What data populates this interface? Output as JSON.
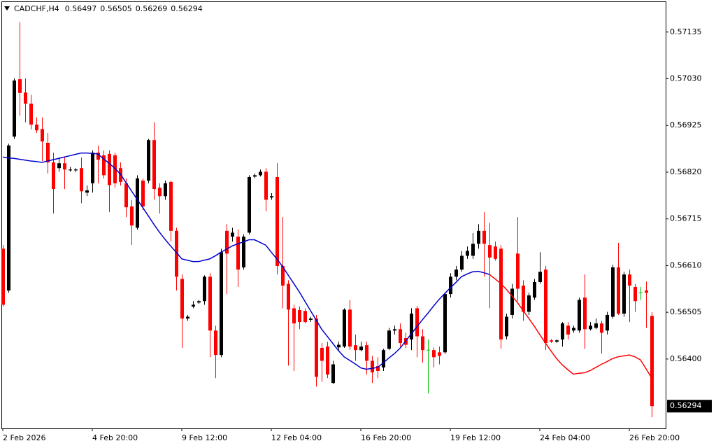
{
  "chart_data": {
    "type": "candlestick",
    "symbol": "CADCHF,H4",
    "categories": [
      "2 Feb 2026",
      null,
      null,
      null,
      null,
      null,
      null,
      null,
      null,
      null,
      null,
      null,
      null,
      null,
      null,
      null,
      "4 Feb 20:00",
      null,
      null,
      null,
      null,
      null,
      null,
      null,
      null,
      null,
      null,
      null,
      null,
      null,
      null,
      null,
      "9 Feb 12:00",
      null,
      null,
      null,
      null,
      null,
      null,
      null,
      null,
      null,
      null,
      null,
      null,
      null,
      null,
      null,
      "12 Feb 04:00",
      null,
      null,
      null,
      null,
      null,
      null,
      null,
      null,
      null,
      null,
      null,
      null,
      null,
      null,
      null,
      "16 Feb 20:00",
      null,
      null,
      null,
      null,
      null,
      null,
      null,
      null,
      null,
      null,
      null,
      null,
      null,
      null,
      null,
      "19 Feb 12:00",
      null,
      null,
      null,
      null,
      null,
      null,
      null,
      null,
      null,
      null,
      null,
      null,
      null,
      null,
      null,
      "24 Feb 04:00",
      null,
      null,
      null,
      null,
      null,
      null,
      null,
      null,
      null,
      null,
      null,
      null,
      null,
      null,
      null,
      "26 Feb 20:00",
      null,
      null,
      null,
      null
    ],
    "ohlc": [
      [
        0.56648,
        0.56656,
        0.56518,
        0.56522
      ],
      [
        0.56554,
        0.56884,
        0.56549,
        0.5688
      ],
      [
        0.569,
        0.57031,
        0.56895,
        0.57026
      ],
      [
        0.57029,
        0.57157,
        0.56947,
        0.56998
      ],
      [
        0.56999,
        0.57031,
        0.56932,
        0.56974
      ],
      [
        0.56974,
        0.56994,
        0.56916,
        0.56927
      ],
      [
        0.56927,
        0.56943,
        0.56908,
        0.56914
      ],
      [
        0.56917,
        0.56943,
        0.56845,
        0.56889
      ],
      [
        0.56886,
        0.56908,
        0.56817,
        0.56842
      ],
      [
        0.56842,
        0.56864,
        0.56727,
        0.56782
      ],
      [
        0.56829,
        0.56853,
        0.56821,
        0.5684
      ],
      [
        0.5684,
        0.56853,
        0.56782,
        0.56826
      ],
      [
        0.56824,
        0.56832,
        0.56821,
        0.56826
      ],
      [
        0.56824,
        0.56829,
        0.5682,
        0.56826
      ],
      [
        0.56829,
        0.56853,
        0.5675,
        0.56777
      ],
      [
        0.56774,
        0.5679,
        0.56766,
        0.56779
      ],
      [
        0.56795,
        0.56869,
        0.56774,
        0.56864
      ],
      [
        0.56864,
        0.5688,
        0.56795,
        0.56848
      ],
      [
        0.56858,
        0.56869,
        0.56806,
        0.56813
      ],
      [
        0.56861,
        0.56869,
        0.5673,
        0.56791
      ],
      [
        0.56858,
        0.56864,
        0.56785,
        0.56795
      ],
      [
        0.56829,
        0.56842,
        0.5679,
        0.56798
      ],
      [
        0.56795,
        0.56806,
        0.56719,
        0.56741
      ],
      [
        0.56743,
        0.56758,
        0.56656,
        0.567
      ],
      [
        0.56695,
        0.56813,
        0.56691,
        0.56806
      ],
      [
        0.56801,
        0.56806,
        0.56735,
        0.56743
      ],
      [
        0.56801,
        0.56895,
        0.56795,
        0.56892
      ],
      [
        0.56892,
        0.56932,
        0.56758,
        0.56782
      ],
      [
        0.56785,
        0.56795,
        0.56727,
        0.56766
      ],
      [
        0.56766,
        0.56801,
        0.56758,
        0.56795
      ],
      [
        0.56798,
        0.56801,
        0.56664,
        0.56688
      ],
      [
        0.56688,
        0.56695,
        0.56554,
        0.56585
      ],
      [
        0.5658,
        0.5659,
        0.56425,
        0.56491
      ],
      [
        0.56491,
        0.56499,
        0.56486,
        0.56495
      ],
      [
        0.56518,
        0.5653,
        0.56514,
        0.56522
      ],
      [
        0.56527,
        0.56533,
        0.56524,
        0.5653
      ],
      [
        0.5653,
        0.56588,
        0.56522,
        0.56585
      ],
      [
        0.56585,
        0.56593,
        0.56404,
        0.56464
      ],
      [
        0.56464,
        0.56475,
        0.56357,
        0.56409
      ],
      [
        0.56409,
        0.56648,
        0.56404,
        0.5664
      ],
      [
        0.56688,
        0.56703,
        0.56546,
        0.56637
      ],
      [
        0.56675,
        0.56695,
        0.56664,
        0.56684
      ],
      [
        0.56675,
        0.56691,
        0.56562,
        0.56601
      ],
      [
        0.56606,
        0.5668,
        0.56601,
        0.56675
      ],
      [
        0.56684,
        0.56813,
        0.5668,
        0.56809
      ],
      [
        0.5681,
        0.56817,
        0.56807,
        0.56813
      ],
      [
        0.56813,
        0.56826,
        0.5681,
        0.56821
      ],
      [
        0.56821,
        0.56829,
        0.56732,
        0.56758
      ],
      [
        0.56763,
        0.56773,
        0.56758,
        0.56766
      ],
      [
        0.56809,
        0.5684,
        0.5659,
        0.56609
      ],
      [
        0.56609,
        0.56719,
        0.56514,
        0.56565
      ],
      [
        0.56569,
        0.56577,
        0.56385,
        0.56511
      ],
      [
        0.56514,
        0.56522,
        0.56373,
        0.5648
      ],
      [
        0.5651,
        0.56518,
        0.56467,
        0.56483
      ],
      [
        0.56508,
        0.56514,
        0.5648,
        0.56483
      ],
      [
        0.56488,
        0.56495,
        0.56483,
        0.56491
      ],
      [
        0.56491,
        0.56499,
        0.56338,
        0.5636
      ],
      [
        0.56425,
        0.56436,
        0.56349,
        0.56396
      ],
      [
        0.56428,
        0.56439,
        0.56357,
        0.56365
      ],
      [
        0.56346,
        0.56396,
        0.56344,
        0.56388
      ],
      [
        0.56426,
        0.56439,
        0.5642,
        0.56432
      ],
      [
        0.56428,
        0.56514,
        0.56425,
        0.56511
      ],
      [
        0.56511,
        0.56533,
        0.5642,
        0.56428
      ],
      [
        0.56431,
        0.56455,
        0.56396,
        0.5642
      ],
      [
        0.5642,
        0.56439,
        0.56417,
        0.56428
      ],
      [
        0.56431,
        0.56439,
        0.56365,
        0.56396
      ],
      [
        0.56396,
        0.56407,
        0.56346,
        0.5637
      ],
      [
        0.56384,
        0.56404,
        0.56357,
        0.56373
      ],
      [
        0.56381,
        0.56423,
        0.56373,
        0.5642
      ],
      [
        0.56423,
        0.5647,
        0.5642,
        0.56464
      ],
      [
        0.56464,
        0.56475,
        0.56455,
        0.56467
      ],
      [
        0.56467,
        0.5648,
        0.56428,
        0.56436
      ],
      [
        0.56447,
        0.56459,
        0.56425,
        0.56432
      ],
      [
        0.56444,
        0.56514,
        0.5642,
        0.56502
      ],
      [
        0.56514,
        0.56519,
        0.56404,
        0.56451
      ],
      [
        0.56451,
        0.56467,
        0.56392,
        0.5642
      ],
      [
        0.5642,
        0.56444,
        0.56322,
        0.5642
      ],
      [
        0.5642,
        0.56426,
        0.56381,
        0.56404
      ],
      [
        0.56415,
        0.56428,
        0.56388,
        0.56407
      ],
      [
        0.56415,
        0.56549,
        0.56412,
        0.56546
      ],
      [
        0.56546,
        0.56593,
        0.56538,
        0.56585
      ],
      [
        0.56585,
        0.56609,
        0.56577,
        0.56601
      ],
      [
        0.56601,
        0.56643,
        0.56596,
        0.56632
      ],
      [
        0.56632,
        0.56653,
        0.56625,
        0.56643
      ],
      [
        0.56632,
        0.56683,
        0.56625,
        0.56659
      ],
      [
        0.56659,
        0.56703,
        0.56648,
        0.56688
      ],
      [
        0.56688,
        0.5673,
        0.56585,
        0.56659
      ],
      [
        0.56656,
        0.56706,
        0.56514,
        0.56628
      ],
      [
        0.56653,
        0.56664,
        0.56621,
        0.56625
      ],
      [
        0.56648,
        0.56656,
        0.56423,
        0.56444
      ],
      [
        0.56451,
        0.56502,
        0.56444,
        0.56495
      ],
      [
        0.56499,
        0.56569,
        0.56491,
        0.56558
      ],
      [
        0.56637,
        0.56719,
        0.5653,
        0.56558
      ],
      [
        0.56565,
        0.56577,
        0.56486,
        0.56506
      ],
      [
        0.56506,
        0.56549,
        0.56499,
        0.56543
      ],
      [
        0.56538,
        0.5658,
        0.56533,
        0.56573
      ],
      [
        0.56573,
        0.5664,
        0.56569,
        0.56596
      ],
      [
        0.56601,
        0.56609,
        0.5642,
        0.56436
      ],
      [
        0.56442,
        0.56445,
        0.56436,
        0.56439
      ],
      [
        0.56439,
        0.56444,
        0.56436,
        0.56442
      ],
      [
        0.56444,
        0.56483,
        0.56428,
        0.5648
      ],
      [
        0.56475,
        0.56483,
        0.56444,
        0.56455
      ],
      [
        0.56464,
        0.56475,
        0.56459,
        0.5647
      ],
      [
        0.56464,
        0.56538,
        0.56459,
        0.56533
      ],
      [
        0.56538,
        0.5659,
        0.56423,
        0.56467
      ],
      [
        0.56467,
        0.56483,
        0.56464,
        0.56475
      ],
      [
        0.5647,
        0.56491,
        0.56467,
        0.5648
      ],
      [
        0.5648,
        0.56486,
        0.56412,
        0.56459
      ],
      [
        0.56464,
        0.56506,
        0.56455,
        0.56499
      ],
      [
        0.56495,
        0.56612,
        0.56491,
        0.56606
      ],
      [
        0.56606,
        0.56661,
        0.56499,
        0.56502
      ],
      [
        0.56502,
        0.56596,
        0.56495,
        0.5659
      ],
      [
        0.5659,
        0.56601,
        0.56483,
        0.56565
      ],
      [
        0.56562,
        0.56569,
        0.56506,
        0.5653
      ],
      [
        0.56549,
        0.56562,
        0.56533,
        0.56549
      ],
      [
        0.56554,
        0.56574,
        0.5647,
        0.56549
      ],
      [
        0.56497,
        0.56505,
        0.56269,
        0.56294
      ]
    ],
    "up_color": "#000000",
    "down_color": "#ff0000",
    "doji_color": "#00c000",
    "series": [
      {
        "color": "#0000cc",
        "values": [
          0.56854,
          0.56852,
          0.56851,
          0.56849,
          0.56847,
          0.56845,
          0.56844,
          0.56842,
          0.56845,
          0.56848,
          0.56851,
          0.56854,
          0.56857,
          0.5686,
          0.56863,
          0.56863,
          0.56862,
          0.56861,
          0.5685,
          0.5684,
          0.56829,
          0.56816,
          0.56797,
          0.56778,
          0.56759,
          0.56741,
          0.56722,
          0.56703,
          0.56685,
          0.56669,
          0.56654,
          0.5664,
          0.56625,
          0.56622,
          0.56619,
          0.56619,
          0.56622,
          0.56625,
          0.56632,
          0.5664,
          0.56647,
          0.56654,
          0.56659,
          0.56663,
          0.56668,
          0.56668,
          0.56662,
          0.56656,
          0.5664,
          0.56625,
          0.56608,
          0.56589,
          0.5657,
          0.56551,
          0.5653,
          0.56509,
          0.56488,
          0.56467,
          0.56451,
          0.56435,
          0.56419,
          0.56405,
          0.56397,
          0.56389,
          0.5638,
          0.56377,
          0.56379,
          0.56381,
          0.56391,
          0.56402,
          0.56412,
          0.56424,
          0.5644,
          0.56456,
          0.56472,
          0.56488,
          0.56503,
          0.56519,
          0.56534,
          0.56547,
          0.5656,
          0.56572,
          0.56585,
          0.56591,
          0.56596,
          0.56597,
          0.56594,
          0.5659,
          null,
          null,
          null,
          null,
          null,
          null,
          null,
          null,
          null,
          null,
          null,
          null,
          null,
          null,
          null,
          null,
          null,
          null,
          null,
          null,
          null,
          null,
          null,
          null,
          null,
          null,
          null,
          null,
          null
        ]
      },
      {
        "color": "#ff0000",
        "values": [
          null,
          null,
          null,
          null,
          null,
          null,
          null,
          null,
          null,
          null,
          null,
          null,
          null,
          null,
          null,
          null,
          null,
          null,
          null,
          null,
          null,
          null,
          null,
          null,
          null,
          null,
          null,
          null,
          null,
          null,
          null,
          null,
          null,
          null,
          null,
          null,
          null,
          null,
          null,
          null,
          null,
          null,
          null,
          null,
          null,
          null,
          null,
          null,
          null,
          null,
          null,
          null,
          null,
          null,
          null,
          null,
          null,
          null,
          null,
          null,
          null,
          null,
          null,
          null,
          null,
          null,
          null,
          null,
          null,
          null,
          null,
          null,
          null,
          null,
          null,
          null,
          null,
          null,
          null,
          null,
          null,
          null,
          null,
          null,
          null,
          null,
          null,
          0.5659,
          0.5658,
          0.5657,
          0.56557,
          0.56542,
          0.56527,
          0.56509,
          0.56492,
          0.56474,
          0.56455,
          0.56436,
          0.56418,
          0.56401,
          0.56387,
          0.56376,
          0.56366,
          0.56368,
          0.56369,
          0.56374,
          0.56381,
          0.56388,
          0.56394,
          0.56401,
          0.56405,
          0.56407,
          0.56409,
          0.56405,
          0.56398,
          0.56378,
          0.56357
        ]
      }
    ],
    "ylim": [
      0.56244,
      0.57207
    ],
    "yticks": [
      0.57135,
      {
        "value": 0.5703,
        "label": "0.57030"
      },
      0.56925,
      {
        "value": 0.5682,
        "label": "0.56820"
      },
      0.56715,
      {
        "value": 0.5661,
        "label": "0.56610"
      },
      0.56505,
      {
        "value": 0.564,
        "label": "0.56400"
      }
    ],
    "grid": false
  }
}
